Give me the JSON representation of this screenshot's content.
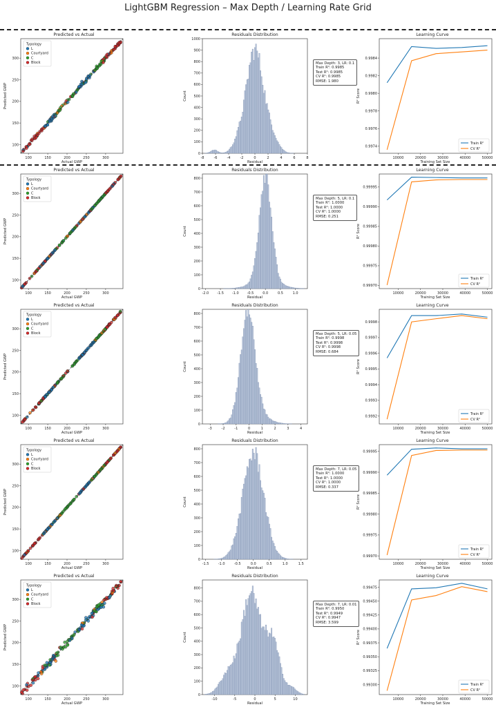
{
  "figure": {
    "title": "LightGBM Regression – Max Depth / Learning Rate Grid"
  },
  "panel_titles": [
    "Predicted vs Actual",
    "Residuals Distribution",
    "Learning Curve"
  ],
  "labels": {
    "actual_x": "Actual GWP",
    "actual_y": "Predicted GWP",
    "resid_x": "Residual",
    "resid_y": "Count",
    "lc_x": "Training Set Size",
    "lc_y": "R² Score",
    "legend_title": "Typology",
    "typologies": [
      "L",
      "Courtyard",
      "C",
      "Block"
    ],
    "lc_series": [
      "Train R²",
      "CV R²"
    ]
  },
  "colors": {
    "L": "#1f77b4",
    "Courtyard": "#ff7f0e",
    "C": "#2ca02c",
    "Block": "#d62728",
    "train": "#1f77b4",
    "cv": "#ff7f0e",
    "hist_fill": "#b6c3d8",
    "hist_edge": "#6b7fa3",
    "diag": "#333333"
  },
  "chart_data": [
    {
      "run": 1,
      "metrics": [
        "Max Depth: 3, LR: 0.1",
        "Train R²: 0.9985",
        "Test R²: 0.9985",
        "CV R²: 0.9985",
        "RMSE: 1.980"
      ],
      "scatter": {
        "type": "scatter",
        "xlim": [
          80,
          345
        ],
        "ylim": [
          80,
          345
        ],
        "xticks": [
          100,
          150,
          200,
          250,
          300
        ],
        "yticks": [
          100,
          150,
          200,
          250,
          300
        ],
        "noise": 2.0
      },
      "hist": {
        "type": "bar",
        "xlim": [
          -8,
          8
        ],
        "xticks": [
          -8,
          -6,
          -4,
          -2,
          0,
          2,
          4,
          6,
          8
        ],
        "ylim": [
          0,
          1000
        ],
        "yticks": [
          0,
          100,
          200,
          300,
          400,
          500,
          600,
          700,
          800,
          900,
          1000
        ],
        "peaks": [
          {
            "mu": 0,
            "sd": 1.3,
            "h": 900
          },
          {
            "mu": 2.6,
            "sd": 1.0,
            "h": 120
          },
          {
            "mu": -2.5,
            "sd": 0.9,
            "h": 80
          },
          {
            "mu": -6.2,
            "sd": 0.5,
            "h": 30
          }
        ],
        "bins": 90
      },
      "curve": {
        "type": "line",
        "x": [
          5000,
          16000,
          27000,
          38500,
          50000
        ],
        "train": [
          0.99812,
          0.99853,
          0.99851,
          0.99852,
          0.99854
        ],
        "cv": [
          0.99736,
          0.99837,
          0.99845,
          0.99847,
          0.99849
        ],
        "xlim": [
          1500,
          52000
        ],
        "xticks": [
          10000,
          20000,
          30000,
          40000,
          50000
        ],
        "ylim": [
          0.99732,
          0.99862
        ],
        "yticks": [
          0.9974,
          0.9976,
          0.9978,
          0.998,
          0.9982,
          0.9984
        ],
        "ydec": 4
      }
    },
    {
      "run": 2,
      "metrics": [
        "Max Depth: 5, LR: 0.1",
        "Train R²: 1.0000",
        "Test R²: 1.0000",
        "CV R²: 1.0000",
        "RMSE: 0.251"
      ],
      "scatter": {
        "type": "scatter",
        "xlim": [
          80,
          345
        ],
        "ylim": [
          80,
          345
        ],
        "xticks": [
          100,
          150,
          200,
          250,
          300
        ],
        "yticks": [
          100,
          150,
          200,
          250,
          300
        ],
        "noise": 0.3
      },
      "hist": {
        "type": "bar",
        "xlim": [
          -2.1,
          1.4
        ],
        "xticks": [
          -2.0,
          -1.5,
          -1.0,
          -0.5,
          0.0,
          0.5,
          1.0
        ],
        "ylim": [
          0,
          830
        ],
        "yticks": [
          0,
          100,
          200,
          300,
          400,
          500,
          600,
          700,
          800
        ],
        "peaks": [
          {
            "mu": 0,
            "sd": 0.2,
            "h": 790
          },
          {
            "mu": 0,
            "sd": 0.45,
            "h": 60
          }
        ],
        "bins": 90
      },
      "curve": {
        "type": "line",
        "x": [
          5000,
          16000,
          27000,
          38500,
          50000
        ],
        "train": [
          0.999917,
          0.999975,
          0.999974,
          0.999973,
          0.999973
        ],
        "cv": [
          0.999701,
          0.999963,
          0.999968,
          0.999969,
          0.999969
        ],
        "xlim": [
          1500,
          52000
        ],
        "xticks": [
          10000,
          20000,
          30000,
          40000,
          50000
        ],
        "ylim": [
          0.999692,
          0.999983
        ],
        "yticks": [
          0.9997,
          0.99975,
          0.9998,
          0.99985,
          0.9999,
          0.99995
        ],
        "ydec": 5
      }
    },
    {
      "run": 3,
      "metrics": [
        "Max Depth: 5, LR: 0.05",
        "Train R²: 0.9998",
        "Test R²: 0.9998",
        "CV R²: 0.9998",
        "RMSE: 0.684"
      ],
      "scatter": {
        "type": "scatter",
        "xlim": [
          80,
          345
        ],
        "ylim": [
          80,
          345
        ],
        "xticks": [
          100,
          150,
          200,
          250,
          300
        ],
        "yticks": [
          100,
          150,
          200,
          250,
          300
        ],
        "noise": 0.7
      },
      "hist": {
        "type": "bar",
        "xlim": [
          -3.6,
          4.5
        ],
        "xticks": [
          -3,
          -2,
          -1,
          0,
          1,
          2,
          3,
          4
        ],
        "ylim": [
          0,
          830
        ],
        "yticks": [
          0,
          100,
          200,
          300,
          400,
          500,
          600,
          700,
          800
        ],
        "peaks": [
          {
            "mu": -0.1,
            "sd": 0.55,
            "h": 780
          },
          {
            "mu": 0.5,
            "sd": 0.9,
            "h": 70
          }
        ],
        "bins": 90
      },
      "curve": {
        "type": "line",
        "x": [
          5000,
          16000,
          27000,
          38500,
          50000
        ],
        "train": [
          0.99957,
          0.99984,
          0.99984,
          0.99985,
          0.99983
        ],
        "cv": [
          0.99918,
          0.9998,
          0.99982,
          0.99984,
          0.99982
        ],
        "xlim": [
          1500,
          52000
        ],
        "xticks": [
          10000,
          20000,
          30000,
          40000,
          50000
        ],
        "ylim": [
          0.99915,
          0.99988
        ],
        "yticks": [
          0.9992,
          0.9993,
          0.9994,
          0.9995,
          0.9996,
          0.9997,
          0.9998
        ],
        "ydec": 4
      }
    },
    {
      "run": 4,
      "metrics": [
        "Max Depth: 7, LR: 0.05",
        "Train R²: 1.0000",
        "Test R²: 1.0000",
        "CV R²: 1.0000",
        "RMSE: 0.337"
      ],
      "scatter": {
        "type": "scatter",
        "xlim": [
          80,
          345
        ],
        "ylim": [
          80,
          345
        ],
        "xticks": [
          100,
          150,
          200,
          250,
          300
        ],
        "yticks": [
          100,
          150,
          200,
          250,
          300
        ],
        "noise": 0.35
      },
      "hist": {
        "type": "bar",
        "xlim": [
          -1.6,
          1.7
        ],
        "xticks": [
          -1.5,
          -1.0,
          -0.5,
          0.0,
          0.5,
          1.0,
          1.5
        ],
        "ylim": [
          0,
          830
        ],
        "yticks": [
          0,
          100,
          200,
          300,
          400,
          500,
          600,
          700,
          800
        ],
        "peaks": [
          {
            "mu": 0,
            "sd": 0.33,
            "h": 770
          }
        ],
        "bins": 90
      },
      "curve": {
        "type": "line",
        "x": [
          5000,
          16000,
          27000,
          38500,
          50000
        ],
        "train": [
          0.999893,
          0.999955,
          0.999958,
          0.999956,
          0.999956
        ],
        "cv": [
          0.999702,
          0.99994,
          0.999952,
          0.999953,
          0.999953
        ],
        "xlim": [
          1500,
          52000
        ],
        "xticks": [
          10000,
          20000,
          30000,
          40000,
          50000
        ],
        "ylim": [
          0.999692,
          0.999966
        ],
        "yticks": [
          0.9997,
          0.99975,
          0.9998,
          0.99985,
          0.9999,
          0.99995
        ],
        "ydec": 5
      }
    },
    {
      "run": 5,
      "metrics": [
        "Max Depth: 7, LR: 0.01",
        "Train R²: 0.9950",
        "Test R²: 0.9949",
        "CV R²: 0.9947",
        "RMSE: 3.599"
      ],
      "scatter": {
        "type": "scatter",
        "xlim": [
          80,
          345
        ],
        "ylim": [
          80,
          345
        ],
        "xticks": [
          100,
          150,
          200,
          250,
          300
        ],
        "yticks": [
          100,
          150,
          200,
          250,
          300
        ],
        "noise": 3.6
      },
      "hist": {
        "type": "bar",
        "xlim": [
          -13,
          13
        ],
        "xticks": [
          -10,
          -5,
          0,
          5,
          10
        ],
        "ylim": [
          0,
          860
        ],
        "yticks": [
          0,
          100,
          200,
          300,
          400,
          500,
          600,
          700,
          800
        ],
        "peaks": [
          {
            "mu": -1,
            "sd": 2.3,
            "h": 760
          },
          {
            "mu": 4.3,
            "sd": 1.8,
            "h": 400
          },
          {
            "mu": -6.5,
            "sd": 2.0,
            "h": 160
          },
          {
            "mu": 9,
            "sd": 1.3,
            "h": 50
          }
        ],
        "bins": 90
      },
      "curve": {
        "type": "line",
        "x": [
          5000,
          16000,
          27000,
          38500,
          50000
        ],
        "train": [
          0.99365,
          0.99472,
          0.99474,
          0.99482,
          0.99472
        ],
        "cv": [
          0.99289,
          0.99452,
          0.9946,
          0.99476,
          0.99467
        ],
        "xlim": [
          1500,
          52000
        ],
        "xticks": [
          10000,
          20000,
          30000,
          40000,
          50000
        ],
        "ylim": [
          0.99282,
          0.99488
        ],
        "yticks": [
          0.993,
          0.99325,
          0.9935,
          0.99375,
          0.994,
          0.99425,
          0.9945,
          0.99475
        ],
        "ydec": 5
      }
    }
  ]
}
